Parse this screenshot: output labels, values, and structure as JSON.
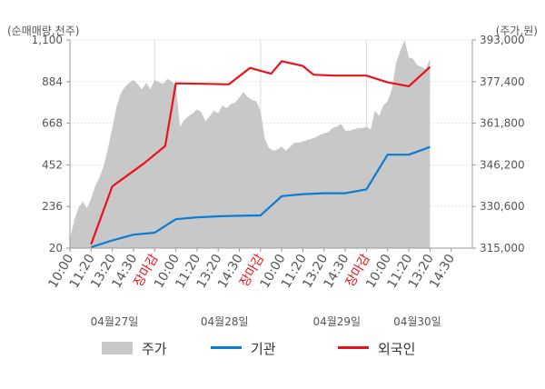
{
  "chart_data": {
    "type": "line",
    "left_axis_title": "(순매매량,천주)",
    "right_axis_title": "(주가,원)",
    "left_ticks": [
      "1,100",
      "884",
      "668",
      "452",
      "236",
      "20"
    ],
    "left_tick_values": [
      1100,
      884,
      668,
      452,
      236,
      20
    ],
    "right_ticks": [
      "393,000",
      "377,400",
      "361,800",
      "346,200",
      "330,600",
      "315,000"
    ],
    "right_tick_values": [
      393000,
      377400,
      361800,
      346200,
      330600,
      315000
    ],
    "ylim_left": [
      20,
      1100
    ],
    "ylim_right": [
      315000,
      393000
    ],
    "x_tick_labels": [
      {
        "text": "10:00",
        "marker": false
      },
      {
        "text": "11:20",
        "marker": false
      },
      {
        "text": "13:20",
        "marker": false
      },
      {
        "text": "14:30",
        "marker": false
      },
      {
        "text": "장마감",
        "marker": true
      },
      {
        "text": "10:00",
        "marker": false
      },
      {
        "text": "11:20",
        "marker": false
      },
      {
        "text": "13:20",
        "marker": false
      },
      {
        "text": "14:30",
        "marker": false
      },
      {
        "text": "장마감",
        "marker": true
      },
      {
        "text": "10:00",
        "marker": false
      },
      {
        "text": "11:20",
        "marker": false
      },
      {
        "text": "13:20",
        "marker": false
      },
      {
        "text": "14:30",
        "marker": false
      },
      {
        "text": "장마감",
        "marker": true
      },
      {
        "text": "10:00",
        "marker": false
      },
      {
        "text": "11:20",
        "marker": false
      },
      {
        "text": "13:20",
        "marker": false
      },
      {
        "text": "14:30",
        "marker": false
      }
    ],
    "day_labels": [
      "04월27일",
      "04월28일",
      "04월29일",
      "04월30일"
    ],
    "legend": [
      {
        "name": "주가",
        "color": "#c8c8c8",
        "kind": "area"
      },
      {
        "name": "기관",
        "color": "#0a7cd2",
        "kind": "line"
      },
      {
        "name": "외국인",
        "color": "#e8121e",
        "kind": "line"
      }
    ],
    "series": [
      {
        "name": "외국인",
        "axis": "left",
        "color": "#e8121e",
        "x": [
          1,
          2,
          3.5,
          4.5,
          5,
          6.5,
          7.5,
          8.5,
          9.5,
          10,
          11,
          11.5,
          12.5,
          14,
          15,
          16,
          17
        ],
        "values": [
          40,
          340,
          460,
          550,
          875,
          872,
          870,
          955,
          925,
          990,
          965,
          920,
          915,
          915,
          880,
          860,
          960
        ]
      },
      {
        "name": "기관",
        "axis": "left",
        "color": "#0a7cd2",
        "x": [
          1,
          2,
          3,
          4,
          5,
          6,
          7,
          8,
          9,
          10,
          11,
          12,
          13,
          14,
          15,
          16,
          17
        ],
        "values": [
          25,
          60,
          90,
          100,
          170,
          180,
          185,
          188,
          190,
          290,
          300,
          305,
          305,
          325,
          505,
          505,
          545
        ]
      },
      {
        "name": "주가",
        "axis": "right",
        "color": "#c8c8c8",
        "x": [
          0,
          0.2,
          0.4,
          0.6,
          0.8,
          1.0,
          1.2,
          1.4,
          1.6,
          1.8,
          2.0,
          2.2,
          2.4,
          2.6,
          2.8,
          3.0,
          3.2,
          3.4,
          3.6,
          3.8,
          4.0,
          4.2,
          4.4,
          4.6,
          4.8,
          5.0,
          5.2,
          5.4,
          5.6,
          5.8,
          6.0,
          6.2,
          6.4,
          6.6,
          6.8,
          7.0,
          7.2,
          7.4,
          7.6,
          7.8,
          8.0,
          8.2,
          8.4,
          8.6,
          8.8,
          9.0,
          9.2,
          9.4,
          9.6,
          9.8,
          10.0,
          10.2,
          10.4,
          10.6,
          10.8,
          11.0,
          11.2,
          11.4,
          11.6,
          11.8,
          12.0,
          12.2,
          12.4,
          12.6,
          12.8,
          13.0,
          13.2,
          13.4,
          13.6,
          13.8,
          14.0,
          14.2,
          14.4,
          14.6,
          14.8,
          15.0,
          15.2,
          15.4,
          15.6,
          15.8,
          16.0,
          16.2,
          16.4,
          16.6,
          16.8,
          17.0
        ],
        "values": [
          318500,
          325500,
          330000,
          332500,
          330000,
          333500,
          338500,
          341500,
          346000,
          352500,
          360000,
          368000,
          373000,
          375500,
          377000,
          378000,
          376500,
          374500,
          377000,
          374500,
          378000,
          377200,
          376500,
          378500,
          377500,
          376000,
          360500,
          363000,
          364500,
          365500,
          367000,
          366000,
          362500,
          364500,
          366500,
          365500,
          368500,
          367500,
          369000,
          369500,
          371500,
          373500,
          371500,
          370500,
          370000,
          366500,
          356000,
          352500,
          351500,
          352000,
          353000,
          351500,
          353000,
          354500,
          354500,
          355000,
          355500,
          356000,
          356500,
          357500,
          358000,
          358500,
          360000,
          360500,
          361500,
          359000,
          359000,
          359500,
          360000,
          360000,
          360500,
          359500,
          366500,
          364500,
          368500,
          370000,
          374500,
          384500,
          389000,
          393000,
          386500,
          386000,
          383500,
          383000,
          382000,
          386000
        ]
      }
    ]
  }
}
